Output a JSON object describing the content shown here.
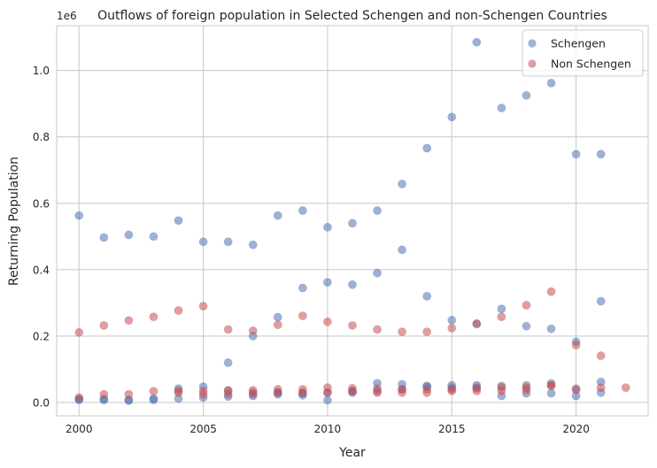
{
  "chart_data": {
    "type": "scatter",
    "title": "Outflows of foreign population in Selected Schengen and non-Schengen Countries",
    "xlabel": "Year",
    "ylabel": "Returning Population",
    "y_offset_text": "1e6",
    "xlim": [
      1999.1,
      2022.9
    ],
    "ylim": [
      -40000,
      1135000
    ],
    "x_ticks": [
      2000,
      2005,
      2010,
      2015,
      2020
    ],
    "x_tick_labels": [
      "2000",
      "2005",
      "2010",
      "2015",
      "2020"
    ],
    "y_ticks": [
      0,
      200000,
      400000,
      600000,
      800000,
      1000000
    ],
    "y_tick_labels": [
      "0.0",
      "0.2",
      "0.4",
      "0.6",
      "0.8",
      "1.0"
    ],
    "grid": true,
    "legend_position": "top-right",
    "series": [
      {
        "name": "Schengen",
        "color": "#4c72b0",
        "points": [
          [
            2000,
            563000
          ],
          [
            2001,
            497000
          ],
          [
            2002,
            505000
          ],
          [
            2003,
            500000
          ],
          [
            2004,
            548000
          ],
          [
            2005,
            484000
          ],
          [
            2006,
            484000
          ],
          [
            2007,
            475000
          ],
          [
            2008,
            563000
          ],
          [
            2009,
            578000
          ],
          [
            2010,
            528000
          ],
          [
            2011,
            540000
          ],
          [
            2012,
            578000
          ],
          [
            2013,
            658000
          ],
          [
            2014,
            766000
          ],
          [
            2015,
            860000
          ],
          [
            2016,
            1085000
          ],
          [
            2017,
            887000
          ],
          [
            2018,
            925000
          ],
          [
            2019,
            962000
          ],
          [
            2020,
            748000
          ],
          [
            2021,
            748000
          ],
          [
            2006,
            120000
          ],
          [
            2007,
            200000
          ],
          [
            2008,
            257000
          ],
          [
            2009,
            345000
          ],
          [
            2010,
            362000
          ],
          [
            2011,
            355000
          ],
          [
            2012,
            390000
          ],
          [
            2013,
            460000
          ],
          [
            2014,
            320000
          ],
          [
            2015,
            248000
          ],
          [
            2016,
            238000
          ],
          [
            2017,
            282000
          ],
          [
            2018,
            230000
          ],
          [
            2019,
            222000
          ],
          [
            2020,
            183000
          ],
          [
            2021,
            305000
          ],
          [
            2000,
            10000
          ],
          [
            2001,
            10000
          ],
          [
            2002,
            8000
          ],
          [
            2003,
            12000
          ],
          [
            2004,
            42000
          ],
          [
            2005,
            48000
          ],
          [
            2006,
            35000
          ],
          [
            2007,
            30000
          ],
          [
            2008,
            30000
          ],
          [
            2009,
            28000
          ],
          [
            2010,
            30000
          ],
          [
            2011,
            35000
          ],
          [
            2012,
            58000
          ],
          [
            2013,
            55000
          ],
          [
            2014,
            50000
          ],
          [
            2015,
            52000
          ],
          [
            2016,
            52000
          ],
          [
            2017,
            50000
          ],
          [
            2018,
            52000
          ],
          [
            2019,
            58000
          ],
          [
            2020,
            42000
          ],
          [
            2021,
            62000
          ],
          [
            2000,
            8000
          ],
          [
            2001,
            8000
          ],
          [
            2002,
            6000
          ],
          [
            2003,
            8000
          ],
          [
            2004,
            12000
          ],
          [
            2005,
            15000
          ],
          [
            2006,
            18000
          ],
          [
            2007,
            20000
          ],
          [
            2008,
            25000
          ],
          [
            2009,
            22000
          ],
          [
            2010,
            7000
          ],
          [
            2011,
            30000
          ],
          [
            2012,
            35000
          ],
          [
            2013,
            40000
          ],
          [
            2014,
            48000
          ],
          [
            2015,
            45000
          ],
          [
            2016,
            45000
          ],
          [
            2017,
            20000
          ],
          [
            2018,
            28000
          ],
          [
            2019,
            28000
          ],
          [
            2020,
            20000
          ],
          [
            2021,
            30000
          ]
        ]
      },
      {
        "name": "Non Schengen",
        "color": "#c44e52",
        "points": [
          [
            2000,
            211000
          ],
          [
            2001,
            232000
          ],
          [
            2002,
            247000
          ],
          [
            2003,
            258000
          ],
          [
            2004,
            277000
          ],
          [
            2005,
            290000
          ],
          [
            2006,
            220000
          ],
          [
            2007,
            216000
          ],
          [
            2008,
            234000
          ],
          [
            2009,
            261000
          ],
          [
            2010,
            243000
          ],
          [
            2011,
            232000
          ],
          [
            2012,
            220000
          ],
          [
            2013,
            213000
          ],
          [
            2014,
            213000
          ],
          [
            2015,
            224000
          ],
          [
            2016,
            236000
          ],
          [
            2017,
            258000
          ],
          [
            2018,
            293000
          ],
          [
            2019,
            334000
          ],
          [
            2020,
            173000
          ],
          [
            2021,
            141000
          ],
          [
            2000,
            15000
          ],
          [
            2001,
            25000
          ],
          [
            2002,
            25000
          ],
          [
            2003,
            34000
          ],
          [
            2004,
            30000
          ],
          [
            2005,
            35000
          ],
          [
            2006,
            37000
          ],
          [
            2007,
            37000
          ],
          [
            2008,
            40000
          ],
          [
            2009,
            40000
          ],
          [
            2010,
            45000
          ],
          [
            2011,
            43000
          ],
          [
            2012,
            42000
          ],
          [
            2013,
            40000
          ],
          [
            2014,
            40000
          ],
          [
            2015,
            40000
          ],
          [
            2016,
            43000
          ],
          [
            2017,
            45000
          ],
          [
            2018,
            45000
          ],
          [
            2019,
            52000
          ],
          [
            2020,
            38000
          ],
          [
            2021,
            45000
          ],
          [
            2022,
            45000
          ],
          [
            2004,
            35000
          ],
          [
            2005,
            25000
          ],
          [
            2006,
            25000
          ],
          [
            2007,
            25000
          ],
          [
            2008,
            30000
          ],
          [
            2009,
            30000
          ],
          [
            2010,
            30000
          ],
          [
            2011,
            33000
          ],
          [
            2012,
            30000
          ],
          [
            2013,
            30000
          ],
          [
            2014,
            30000
          ],
          [
            2015,
            35000
          ],
          [
            2016,
            35000
          ],
          [
            2017,
            35000
          ],
          [
            2018,
            38000
          ],
          [
            2019,
            50000
          ]
        ]
      }
    ]
  }
}
